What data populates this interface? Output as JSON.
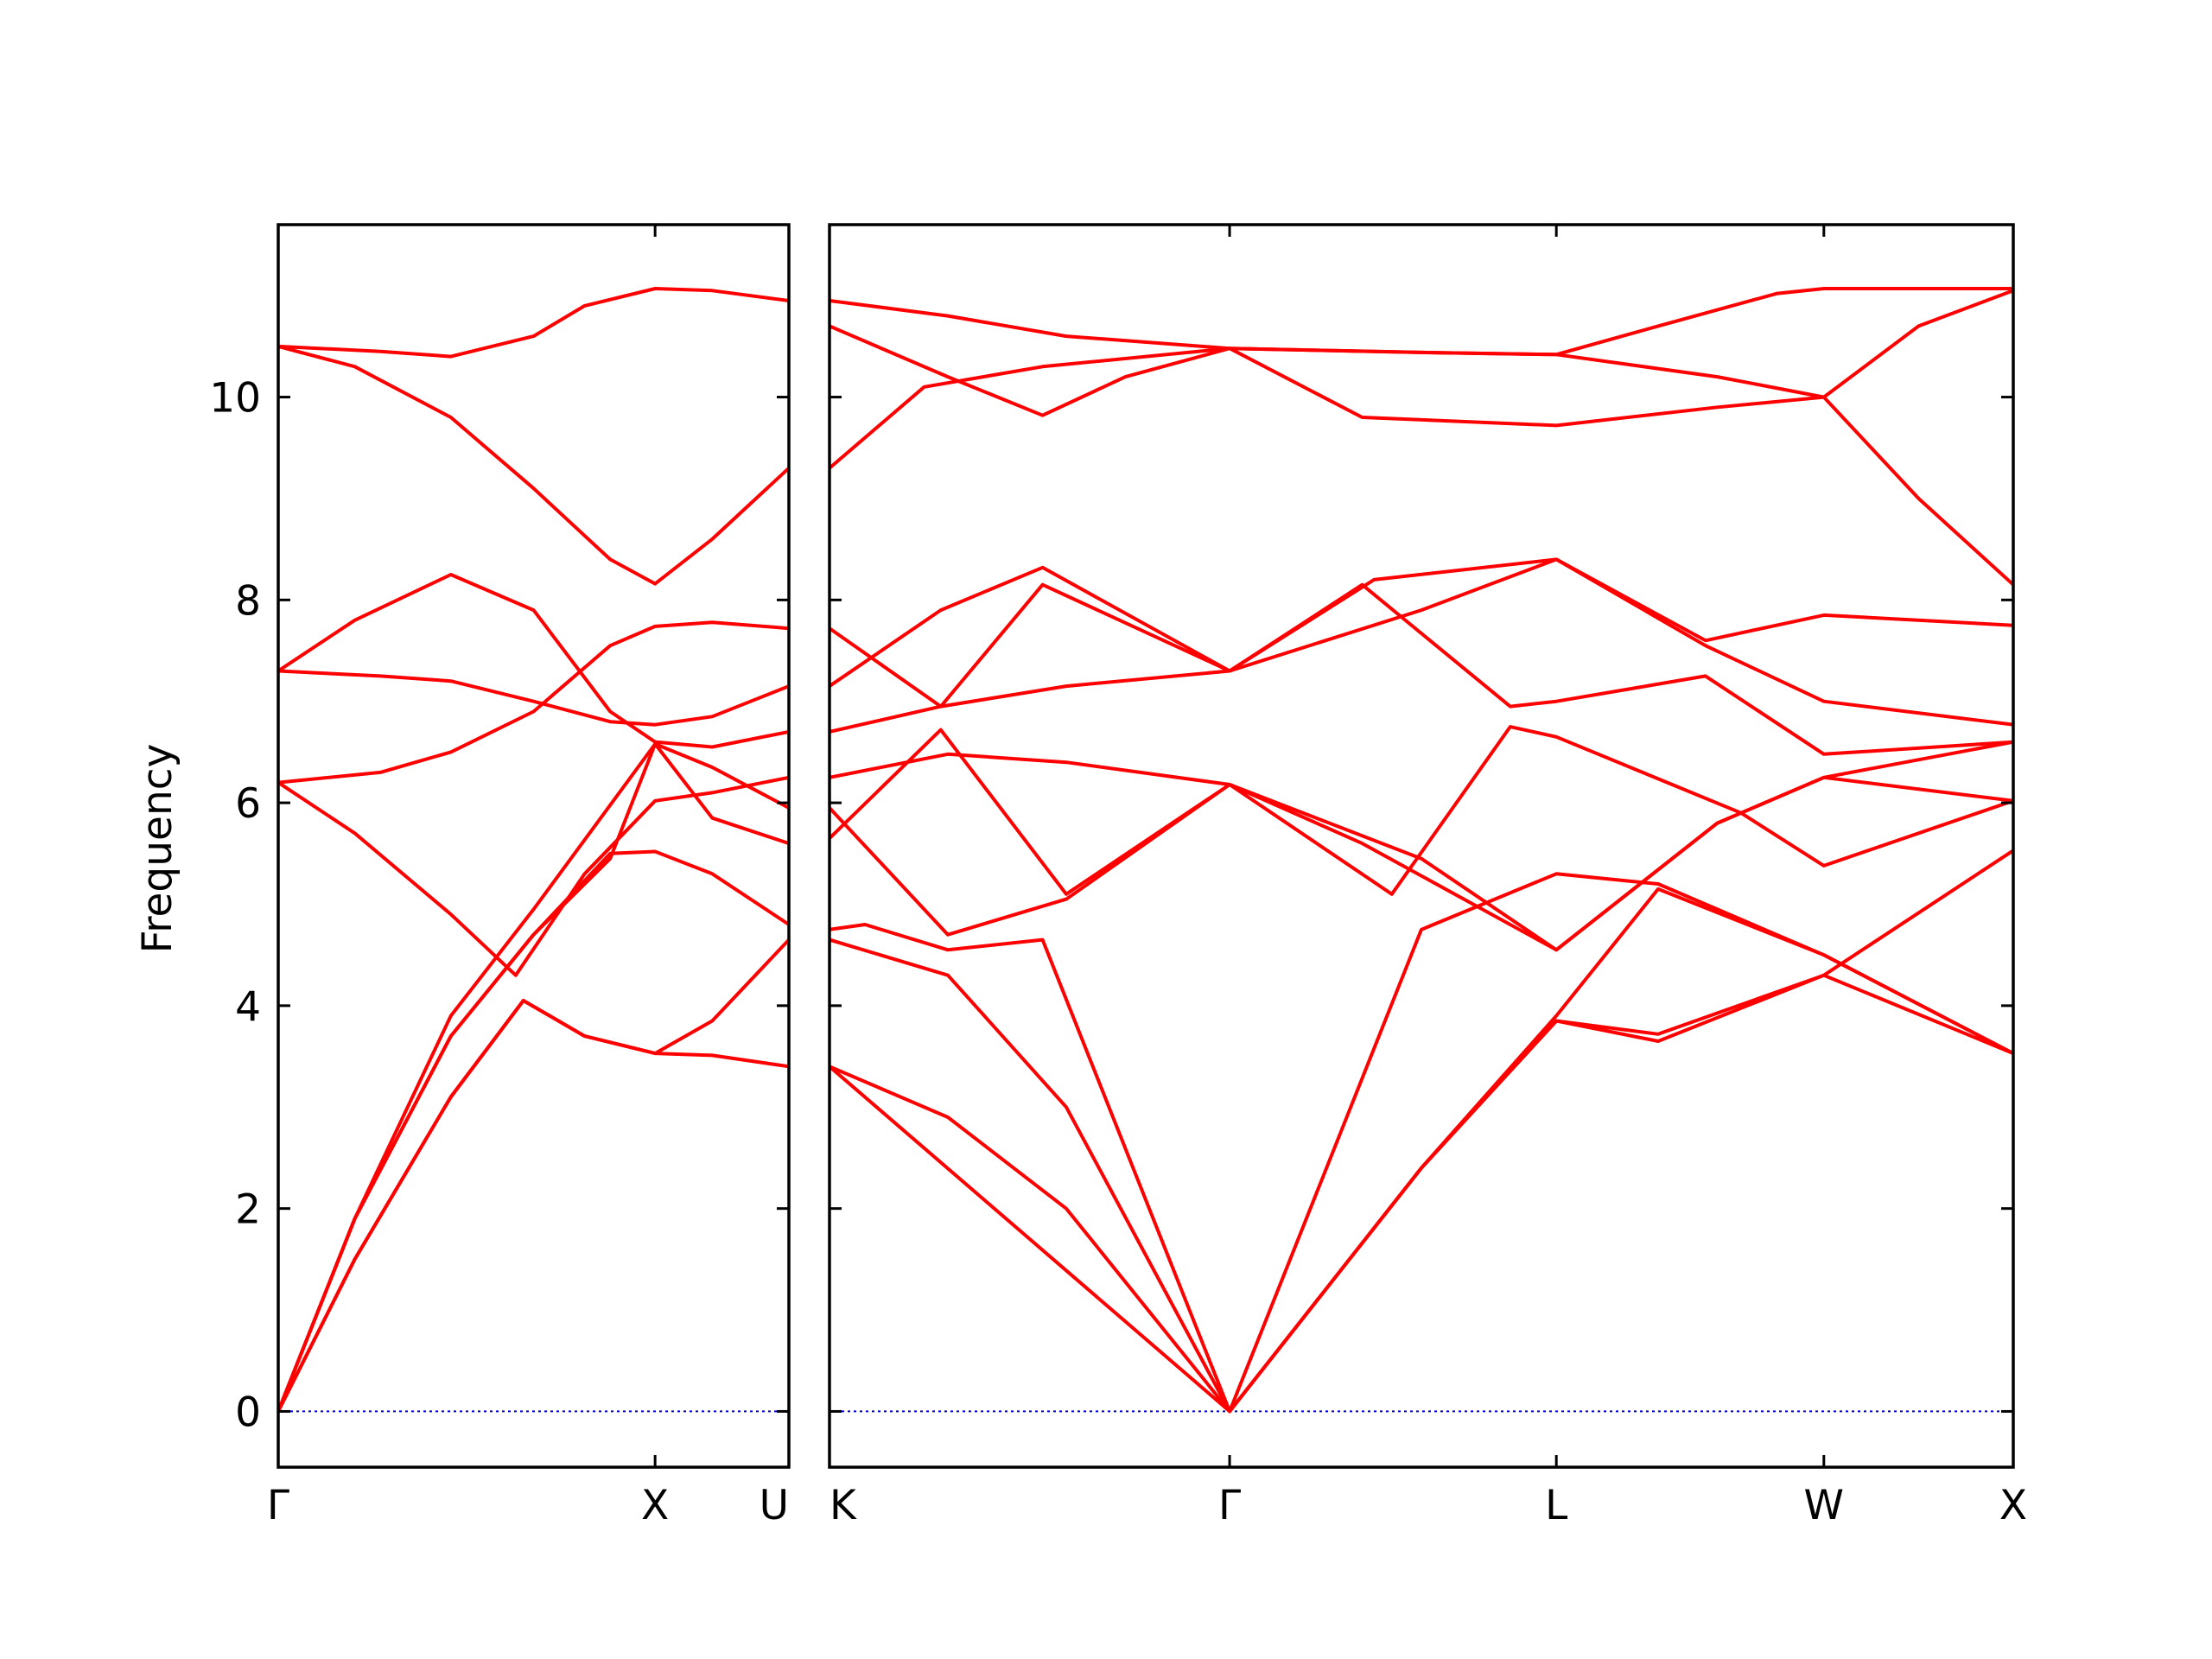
{
  "chart_data": {
    "type": "line",
    "ylabel": "Frequency",
    "ylim": [
      -0.55,
      11.7
    ],
    "y_ticks": [
      0,
      2,
      4,
      6,
      8,
      10
    ],
    "line_color": "#ff0000",
    "zero_line_color": "#0000cc",
    "panels": [
      {
        "name": "left",
        "x_range": [
          0,
          1.0
        ],
        "x_ticks": [
          {
            "x": 0.0,
            "label": "Γ"
          },
          {
            "x": 0.738,
            "label": "X"
          },
          {
            "x": 1.0,
            "label": "U"
          }
        ],
        "series": [
          {
            "x": [
              0,
              0.2,
              0.338,
              0.5,
              0.6,
              0.738,
              0.85,
              1.0
            ],
            "y": [
              10.5,
              10.45,
              10.4,
              10.6,
              10.9,
              11.07,
              11.05,
              10.95
            ]
          },
          {
            "x": [
              0,
              0.15,
              0.338,
              0.5,
              0.65,
              0.738,
              0.85,
              1.0
            ],
            "y": [
              10.5,
              10.3,
              9.8,
              9.1,
              8.4,
              8.16,
              8.6,
              9.3
            ]
          },
          {
            "x": [
              0,
              0.15,
              0.338,
              0.5,
              0.65,
              0.738,
              0.85,
              1.0
            ],
            "y": [
              7.3,
              7.8,
              8.25,
              7.9,
              6.9,
              6.6,
              6.55,
              6.7
            ]
          },
          {
            "x": [
              0,
              0.2,
              0.338,
              0.5,
              0.65,
              0.738,
              0.85,
              1.0
            ],
            "y": [
              7.3,
              7.25,
              7.2,
              7.0,
              6.8,
              6.77,
              6.85,
              7.15
            ]
          },
          {
            "x": [
              0,
              0.2,
              0.338,
              0.5,
              0.65,
              0.738,
              0.85,
              1.0
            ],
            "y": [
              6.2,
              6.3,
              6.5,
              6.9,
              7.55,
              7.74,
              7.78,
              7.72
            ]
          },
          {
            "x": [
              0,
              0.15,
              0.338,
              0.465,
              0.6,
              0.738,
              0.85,
              1.0
            ],
            "y": [
              6.2,
              5.7,
              4.9,
              4.3,
              5.3,
              6.02,
              6.1,
              6.25
            ]
          },
          {
            "x": [
              0,
              0.15,
              0.338,
              0.5,
              0.738,
              0.85,
              1.0
            ],
            "y": [
              0,
              1.9,
              3.9,
              4.95,
              6.58,
              6.35,
              5.95
            ]
          },
          {
            "x": [
              0,
              0.15,
              0.338,
              0.5,
              0.65,
              0.738,
              0.85,
              1.0
            ],
            "y": [
              0,
              1.9,
              3.7,
              4.7,
              5.45,
              6.58,
              5.85,
              5.6
            ]
          },
          {
            "x": [
              0,
              0.15,
              0.338,
              0.5,
              0.65,
              0.738,
              0.85,
              1.0
            ],
            "y": [
              0,
              1.9,
              3.7,
              4.7,
              5.5,
              5.52,
              5.3,
              4.8
            ]
          },
          {
            "x": [
              0,
              0.15,
              0.338,
              0.48,
              0.6,
              0.738,
              0.85,
              1.0
            ],
            "y": [
              0,
              1.5,
              3.1,
              4.05,
              3.7,
              3.53,
              3.85,
              4.65
            ]
          },
          {
            "x": [
              0,
              0.15,
              0.338,
              0.48,
              0.6,
              0.738,
              0.85,
              1.0
            ],
            "y": [
              0,
              1.5,
              3.1,
              4.05,
              3.7,
              3.53,
              3.51,
              3.4
            ]
          }
        ]
      },
      {
        "name": "right",
        "x_range": [
          0,
          1.0
        ],
        "x_ticks": [
          {
            "x": 0.0,
            "label": "K"
          },
          {
            "x": 0.338,
            "label": "Γ"
          },
          {
            "x": 0.614,
            "label": "L"
          },
          {
            "x": 0.84,
            "label": "W"
          },
          {
            "x": 1.0,
            "label": "X"
          }
        ],
        "series": [
          {
            "x": [
              0,
              0.1,
              0.2,
              0.338,
              0.5,
              0.614,
              0.7,
              0.8,
              0.84,
              1.0
            ],
            "y": [
              10.95,
              10.8,
              10.6,
              10.48,
              10.44,
              10.42,
              10.7,
              11.02,
              11.07,
              11.07
            ]
          },
          {
            "x": [
              0,
              0.1,
              0.18,
              0.25,
              0.338,
              0.45,
              0.614,
              0.75,
              0.84,
              0.92,
              1.0
            ],
            "y": [
              10.7,
              10.2,
              9.82,
              10.2,
              10.48,
              9.8,
              9.72,
              9.9,
              10.0,
              9.0,
              8.15
            ]
          },
          {
            "x": [
              0,
              0.08,
              0.18,
              0.338,
              0.5,
              0.614,
              0.75,
              0.84,
              0.92,
              1.0
            ],
            "y": [
              9.3,
              10.1,
              10.3,
              10.48,
              10.44,
              10.42,
              10.2,
              10.0,
              10.7,
              11.05
            ]
          },
          {
            "x": [
              0,
              0.094,
              0.18,
              0.338,
              0.46,
              0.614,
              0.74,
              0.84,
              1.0
            ],
            "y": [
              7.72,
              6.95,
              8.15,
              7.3,
              8.2,
              8.4,
              7.6,
              7.85,
              7.75
            ]
          },
          {
            "x": [
              0,
              0.094,
              0.18,
              0.338,
              0.5,
              0.614,
              0.74,
              0.84,
              1.0
            ],
            "y": [
              7.15,
              7.9,
              8.32,
              7.3,
              7.9,
              8.4,
              7.55,
              7.0,
              6.77
            ]
          },
          {
            "x": [
              0,
              0.094,
              0.2,
              0.338,
              0.45,
              0.575,
              0.614,
              0.74,
              0.84,
              1.0
            ],
            "y": [
              6.7,
              6.95,
              7.15,
              7.3,
              8.15,
              6.95,
              7.0,
              7.25,
              6.48,
              6.6
            ]
          },
          {
            "x": [
              0,
              0.1,
              0.2,
              0.338,
              0.5,
              0.614,
              0.75,
              0.84,
              1.0
            ],
            "y": [
              6.25,
              6.48,
              6.4,
              6.18,
              5.45,
              4.55,
              5.8,
              6.25,
              6.6
            ]
          },
          {
            "x": [
              0,
              0.1,
              0.2,
              0.338,
              0.475,
              0.575,
              0.614,
              0.77,
              0.84,
              1.0
            ],
            "y": [
              5.95,
              4.7,
              5.05,
              6.18,
              5.1,
              6.75,
              6.65,
              5.9,
              5.38,
              6.02
            ]
          },
          {
            "x": [
              0,
              0.094,
              0.2,
              0.338,
              0.45,
              0.614,
              0.75,
              0.84,
              1.0
            ],
            "y": [
              5.65,
              6.72,
              5.1,
              6.18,
              5.6,
              4.55,
              5.8,
              6.25,
              6.02
            ]
          },
          {
            "x": [
              0,
              0.03,
              0.1,
              0.18,
              0.338,
              0.5,
              0.614,
              0.7,
              0.84,
              1.0
            ],
            "y": [
              4.75,
              4.8,
              4.55,
              4.65,
              0,
              4.75,
              5.3,
              5.2,
              4.5,
              3.53
            ]
          },
          {
            "x": [
              0,
              0.1,
              0.2,
              0.338,
              0.5,
              0.614,
              0.7,
              0.84,
              1.0
            ],
            "y": [
              4.65,
              4.3,
              3.0,
              0,
              2.4,
              3.9,
              5.15,
              4.5,
              3.53
            ]
          },
          {
            "x": [
              0,
              0.1,
              0.2,
              0.338,
              0.5,
              0.614,
              0.7,
              0.84,
              1.0
            ],
            "y": [
              3.4,
              2.9,
              2.0,
              0,
              2.4,
              3.85,
              3.72,
              4.3,
              5.53
            ]
          },
          {
            "x": [
              0,
              0.338,
              0.5,
              0.614,
              0.7,
              0.84,
              1.0
            ],
            "y": [
              3.4,
              0,
              2.4,
              3.85,
              3.65,
              4.3,
              3.53
            ]
          }
        ]
      }
    ]
  }
}
